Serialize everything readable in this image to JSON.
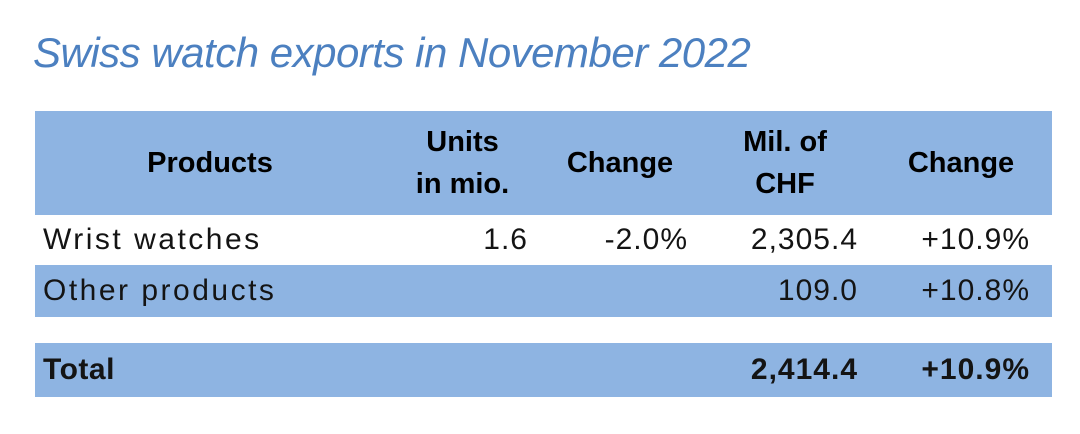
{
  "title": "Swiss watch exports in November 2022",
  "colors": {
    "table_blue": "#8EB4E2",
    "title_blue": "#4C80C0",
    "text_dark": "#141414"
  },
  "table": {
    "header": {
      "products": {
        "line1": "Products",
        "line2": ""
      },
      "units": {
        "line1": "Units",
        "line2": "in mio."
      },
      "change_units": {
        "line1": "Change",
        "line2": ""
      },
      "chf": {
        "line1": "Mil. of",
        "line2": "CHF"
      },
      "change_chf": {
        "line1": "Change",
        "line2": ""
      }
    },
    "rows": [
      {
        "product": "Wrist watches",
        "units": "1.6",
        "units_change": "-2.0%",
        "chf_mil": "2,305.4",
        "chf_change": "+10.9%"
      },
      {
        "product": "Other products",
        "units": "",
        "units_change": "",
        "chf_mil": "109.0",
        "chf_change": "+10.8%"
      }
    ],
    "total_row": {
      "product": "Total",
      "units": "",
      "units_change": "",
      "chf_mil": "2,414.4",
      "chf_change": "+10.9%"
    }
  },
  "chart_data": {
    "type": "table",
    "title": "Swiss watch exports in November 2022",
    "columns": [
      "Products",
      "Units in mio.",
      "Change",
      "Mil. of CHF",
      "Change"
    ],
    "rows": [
      [
        "Wrist watches",
        "1.6",
        "-2.0%",
        "2,305.4",
        "+10.9%"
      ],
      [
        "Other products",
        "",
        "",
        "109.0",
        "+10.8%"
      ],
      [
        "Total",
        "",
        "",
        "2,414.4",
        "+10.9%"
      ]
    ]
  }
}
